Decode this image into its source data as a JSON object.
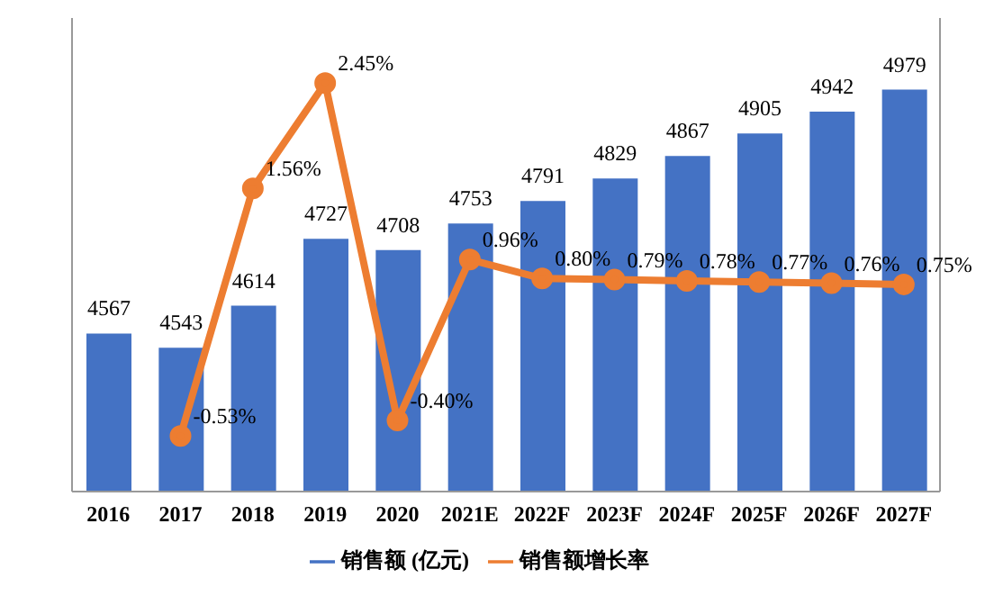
{
  "chart_data": {
    "type": "bar",
    "categories": [
      "2016",
      "2017",
      "2018",
      "2019",
      "2020",
      "2021E",
      "2022F",
      "2023F",
      "2024F",
      "2025F",
      "2026F",
      "2027F"
    ],
    "series": [
      {
        "name": "销售额 (亿元)",
        "color": "#4472c4",
        "values": [
          4567,
          4543,
          4614,
          4727,
          4708,
          4753,
          4791,
          4829,
          4867,
          4905,
          4942,
          4979
        ],
        "value_labels": [
          "4567",
          "4543",
          "4614",
          "4727",
          "4708",
          "4753",
          "4791",
          "4829",
          "4867",
          "4905",
          "4942",
          "4979"
        ]
      },
      {
        "name": "销售额增长率",
        "type": "line",
        "axis": "y2",
        "color": "#ed7d31",
        "marker": "circle",
        "values": [
          null,
          -0.53,
          1.56,
          2.45,
          -0.4,
          0.96,
          0.8,
          0.79,
          0.78,
          0.77,
          0.76,
          0.75
        ],
        "value_labels": [
          null,
          "-0.53%",
          "1.56%",
          "2.45%",
          "-0.40%",
          "0.96%",
          "0.80%",
          "0.79%",
          "0.78%",
          "0.77%",
          "0.76%",
          "0.75%"
        ]
      }
    ],
    "ylim": [
      4300,
      5100
    ],
    "y2lim": [
      -1,
      3
    ],
    "tick_labels": "x",
    "legend": "bottom",
    "grid": false
  }
}
